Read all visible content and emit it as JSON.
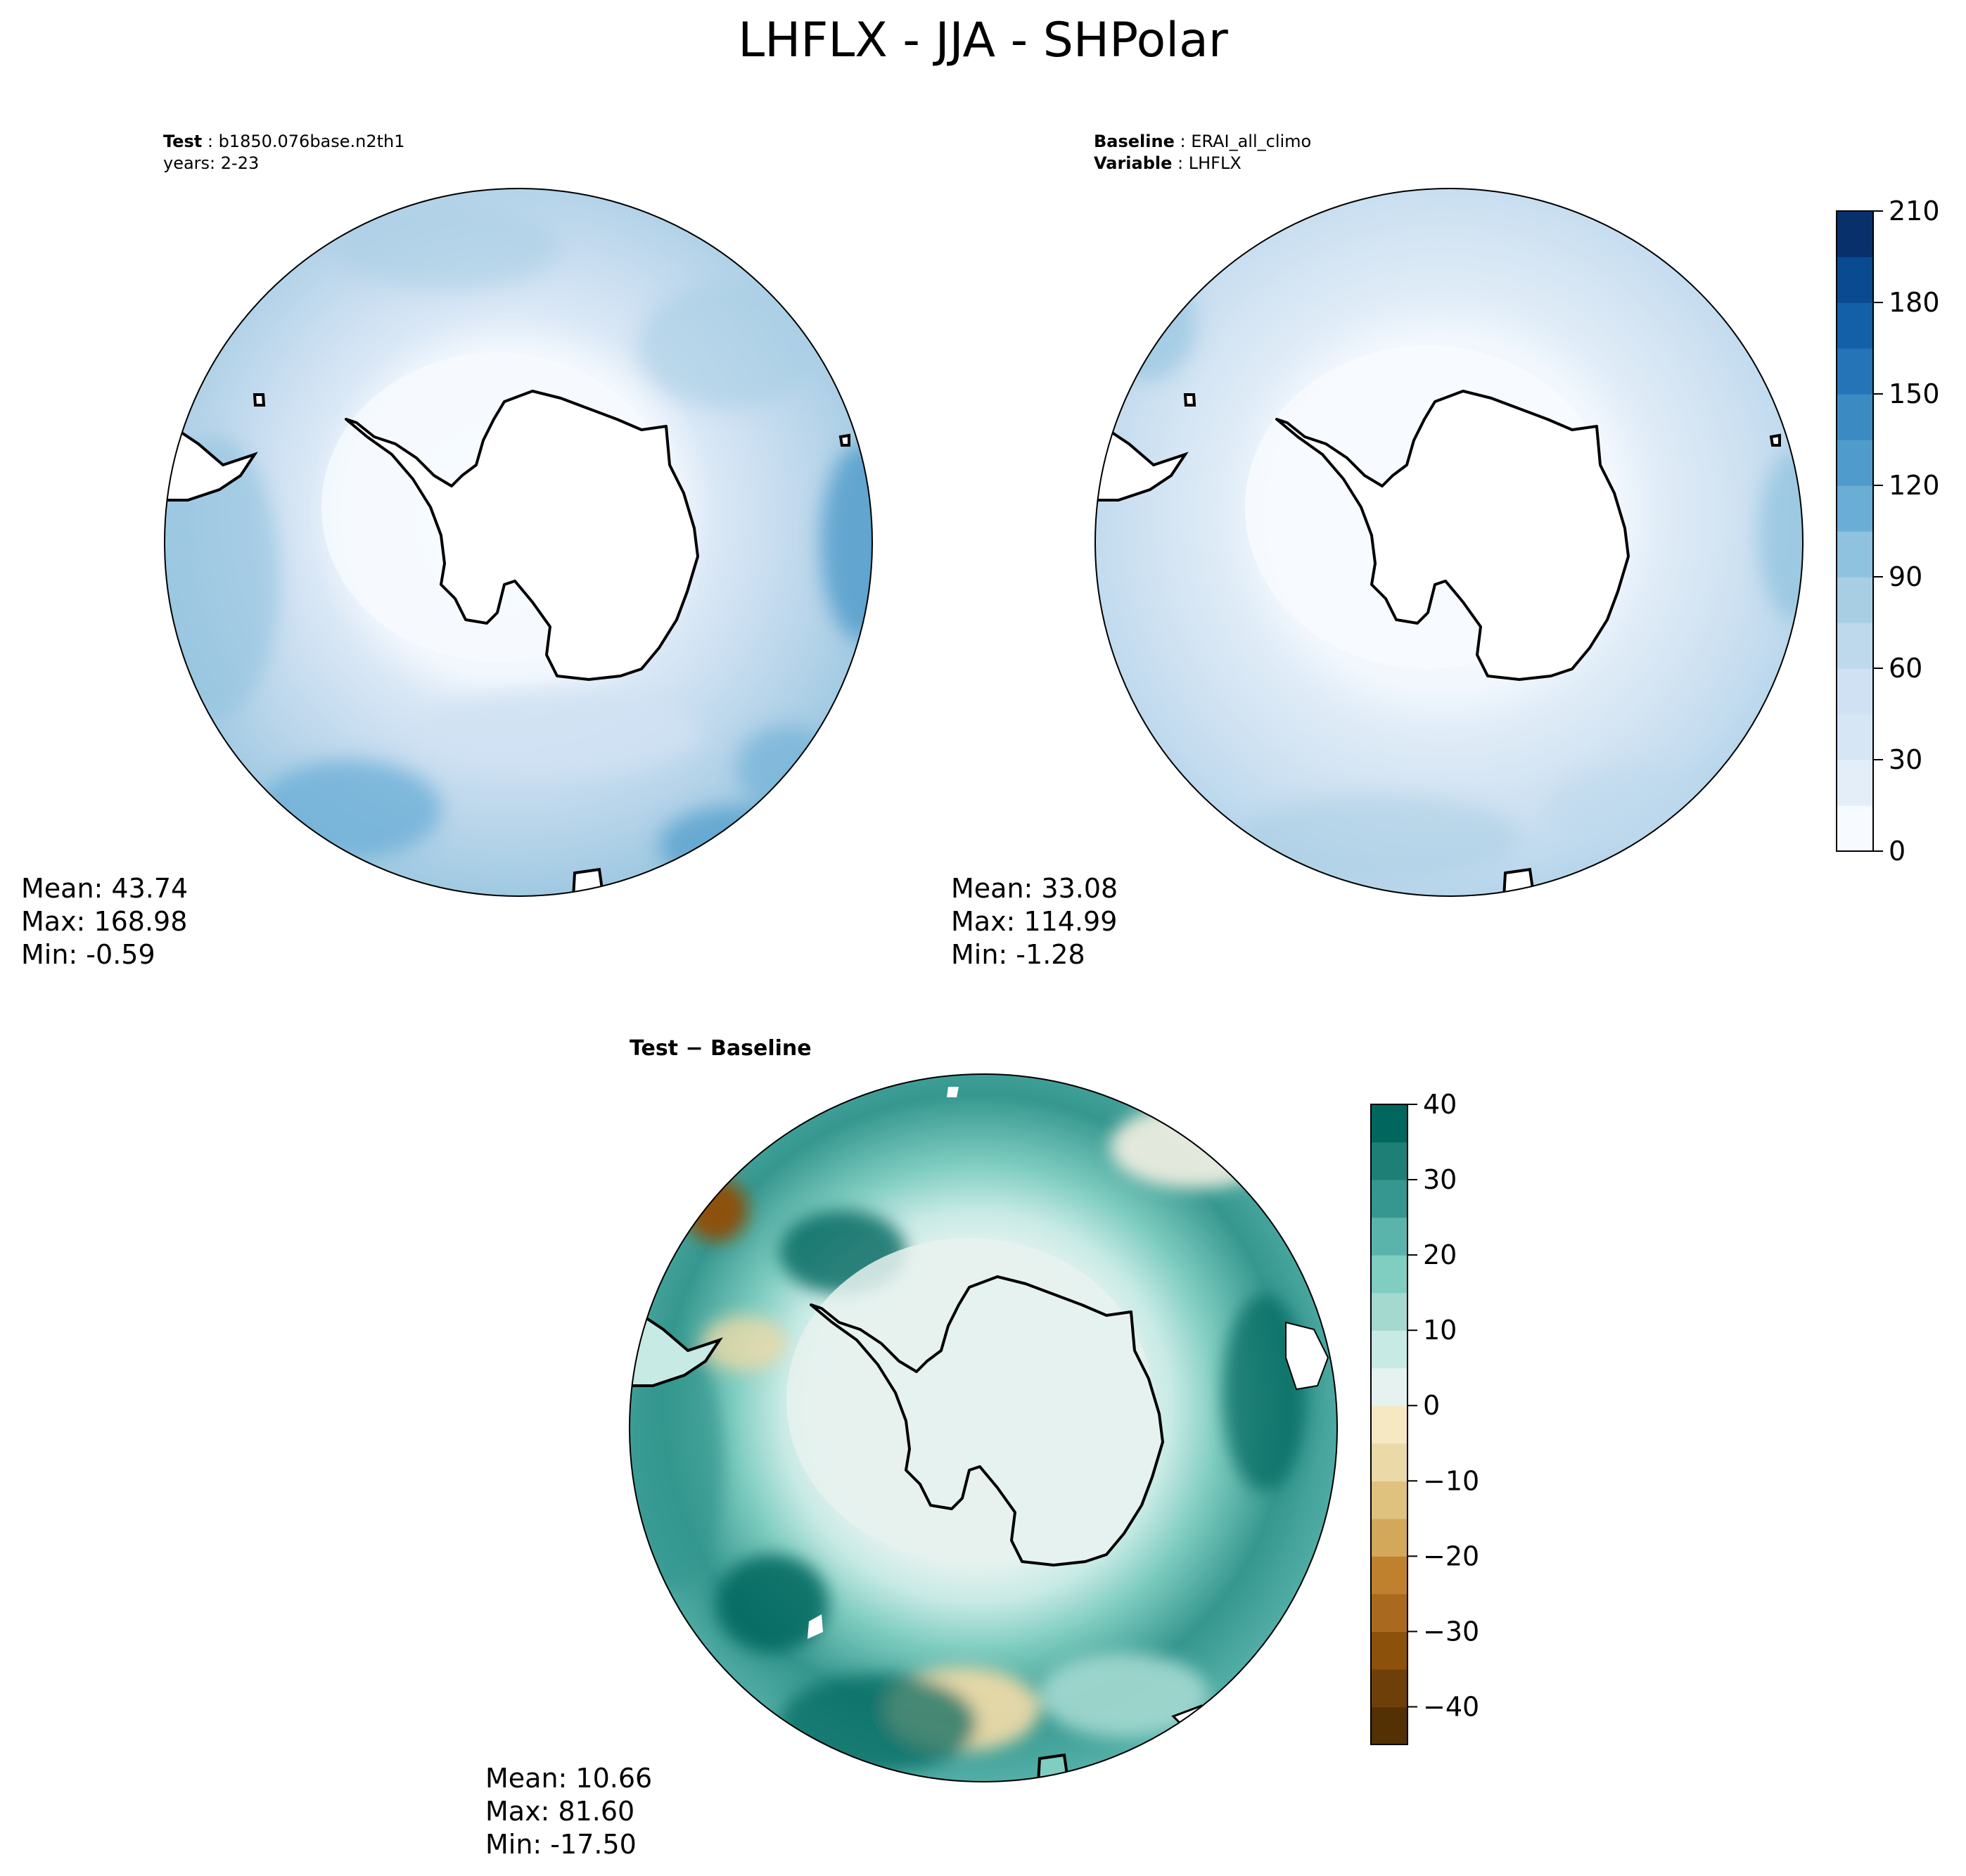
{
  "figure": {
    "title": "LHFLX - JJA - SHPolar"
  },
  "panels": {
    "test": {
      "label_key": "Test",
      "label_value": "b1850.076base.n2th1",
      "label_line2": "years: 2-23",
      "stats": {
        "mean": "Mean: 43.74",
        "max": "Max: 168.98",
        "min": "Min: -0.59"
      }
    },
    "baseline": {
      "label_key": "Baseline",
      "label_value": "ERAI_all_climo",
      "label2_key": "Variable",
      "label2_value": "LHFLX",
      "stats": {
        "mean": "Mean: 33.08",
        "max": "Max: 114.99",
        "min": "Min: -1.28"
      }
    },
    "diff": {
      "label": "Test − Baseline",
      "stats": {
        "mean": "Mean: 10.66",
        "max": "Max: 81.60",
        "min": "Min: -17.50"
      }
    }
  },
  "colors": {
    "blues": [
      "#f7fbff",
      "#e3eef9",
      "#d7e6f5",
      "#cfe1f2",
      "#bed8ec",
      "#a8cee4",
      "#8fc2de",
      "#6aaed6",
      "#4f9bcb",
      "#3b8bc2",
      "#2474b7",
      "#1460a8",
      "#0a4a90",
      "#08306b"
    ],
    "brbg": [
      "#543005",
      "#6f3f0a",
      "#8c510a",
      "#a96a1f",
      "#bf812d",
      "#d3a85a",
      "#dfc27d",
      "#ecd9a8",
      "#f6e8c3",
      "#f5f1e3",
      "#e6f2ef",
      "#c7eae5",
      "#a4d9d0",
      "#80cdc1",
      "#5ab4ac",
      "#35978f",
      "#1e7f76",
      "#01665e",
      "#003c30"
    ],
    "land": "#ffffff",
    "coast": "#000000"
  },
  "chart_data": [
    {
      "type": "heatmap",
      "name": "test",
      "projection": "south-polar-stereographic",
      "colorbar": {
        "levels_min": 0,
        "levels_max": 210,
        "step": 15,
        "ticks": [
          "0",
          "30",
          "60",
          "90",
          "120",
          "150",
          "180",
          "210"
        ]
      }
    },
    {
      "type": "heatmap",
      "name": "baseline",
      "projection": "south-polar-stereographic",
      "colorbar": {
        "levels_min": 0,
        "levels_max": 210,
        "step": 15,
        "ticks": [
          "0",
          "30",
          "60",
          "90",
          "120",
          "150",
          "180",
          "210"
        ]
      }
    },
    {
      "type": "heatmap",
      "name": "difference",
      "projection": "south-polar-stereographic",
      "colorbar": {
        "levels_min": -45,
        "levels_max": 40,
        "step": 5,
        "ticks": [
          "−40",
          "−30",
          "−20",
          "−10",
          "0",
          "10",
          "20",
          "30",
          "40"
        ]
      }
    }
  ]
}
